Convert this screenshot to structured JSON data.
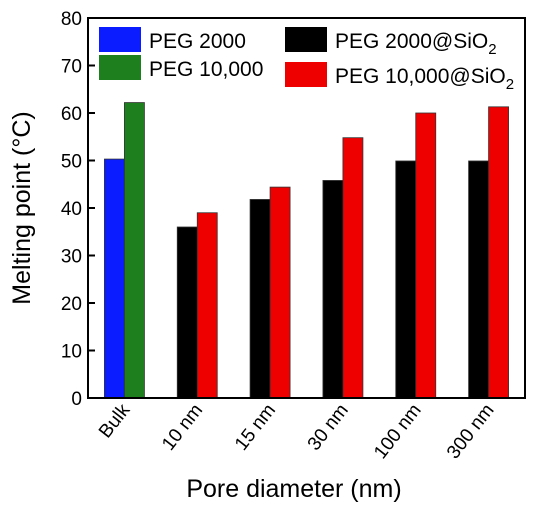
{
  "chart_data": {
    "type": "bar",
    "xlabel": "Pore diameter (nm)",
    "ylabel": "Melting point (°C)",
    "ylim": [
      0,
      80
    ],
    "yticks": [
      0,
      10,
      20,
      30,
      40,
      50,
      60,
      70,
      80
    ],
    "categories": [
      "Bulk",
      "10 nm",
      "15 nm",
      "30 nm",
      "100 nm",
      "300 nm"
    ],
    "series": [
      {
        "name": "PEG 2000",
        "color": "#0b1cff",
        "values": [
          50.3,
          null,
          null,
          null,
          null,
          null
        ]
      },
      {
        "name": "PEG 10,000",
        "color": "#1e7f1e",
        "values": [
          62.2,
          null,
          null,
          null,
          null,
          null
        ]
      },
      {
        "name": "PEG 2000@SiO",
        "name_subscript": "2",
        "color": "#000000",
        "values": [
          null,
          36.0,
          41.8,
          45.8,
          49.9,
          49.9
        ]
      },
      {
        "name": "PEG 10,000@SiO",
        "name_subscript": "2",
        "color": "#ee0000",
        "values": [
          null,
          39.0,
          44.4,
          54.8,
          60.0,
          61.3
        ]
      }
    ],
    "legend": "top, two columns",
    "grid": false
  }
}
